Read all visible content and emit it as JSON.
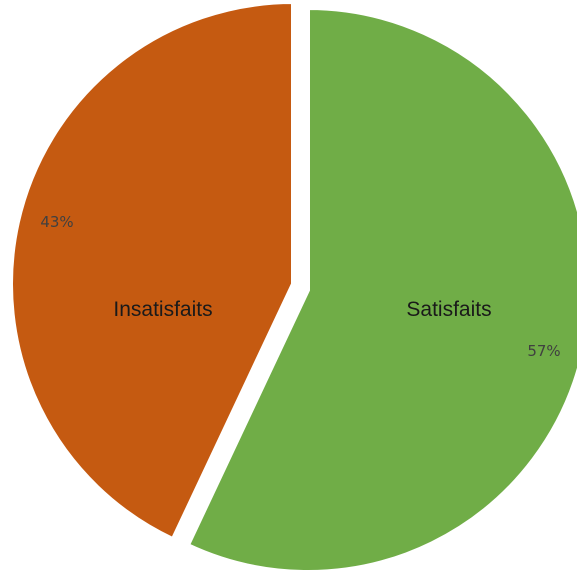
{
  "chart_data": {
    "type": "pie",
    "slices": [
      {
        "name": "Satisfaits",
        "value": 57,
        "value_label": "57%",
        "color": "#70ad47"
      },
      {
        "name": "Insatisfaits",
        "value": 43,
        "value_label": "43%",
        "color": "#c55a11"
      }
    ],
    "start": "top",
    "direction": "clockwise",
    "exploded": true,
    "separator_color": "#ffffff"
  }
}
